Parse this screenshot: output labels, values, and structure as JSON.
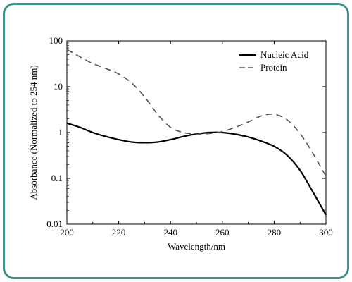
{
  "chart_data": {
    "type": "line",
    "xlabel": "Wavelength/nm",
    "ylabel": "Absorbance (Normalized to 254 nm)",
    "x_ticks": [
      "200",
      "220",
      "240",
      "260",
      "280",
      "300"
    ],
    "y_ticks": [
      "0.01",
      "0.1",
      "1",
      "10",
      "100"
    ],
    "xlim": [
      200,
      300
    ],
    "ylim": [
      0.01,
      100
    ],
    "y_scale": "log",
    "grid": false,
    "legend_position": "top-right",
    "series": [
      {
        "name": "Nucleic Acid",
        "style": "solid",
        "color": "#000000",
        "points": [
          [
            200,
            1.6
          ],
          [
            205,
            1.3
          ],
          [
            210,
            1.0
          ],
          [
            215,
            0.82
          ],
          [
            220,
            0.7
          ],
          [
            225,
            0.62
          ],
          [
            230,
            0.6
          ],
          [
            235,
            0.62
          ],
          [
            240,
            0.7
          ],
          [
            245,
            0.82
          ],
          [
            250,
            0.93
          ],
          [
            255,
            1.0
          ],
          [
            260,
            1.0
          ],
          [
            265,
            0.92
          ],
          [
            270,
            0.8
          ],
          [
            275,
            0.65
          ],
          [
            280,
            0.5
          ],
          [
            285,
            0.32
          ],
          [
            290,
            0.15
          ],
          [
            295,
            0.05
          ],
          [
            300,
            0.016
          ]
        ]
      },
      {
        "name": "Protein",
        "style": "dashed",
        "color": "#555555",
        "points": [
          [
            200,
            65
          ],
          [
            205,
            45
          ],
          [
            210,
            32
          ],
          [
            215,
            25
          ],
          [
            220,
            19
          ],
          [
            225,
            12
          ],
          [
            230,
            6
          ],
          [
            235,
            2.5
          ],
          [
            240,
            1.3
          ],
          [
            245,
            1.0
          ],
          [
            250,
            0.93
          ],
          [
            255,
            0.95
          ],
          [
            260,
            1.05
          ],
          [
            265,
            1.3
          ],
          [
            270,
            1.7
          ],
          [
            275,
            2.3
          ],
          [
            280,
            2.5
          ],
          [
            285,
            1.9
          ],
          [
            290,
            0.95
          ],
          [
            295,
            0.35
          ],
          [
            300,
            0.11
          ]
        ]
      }
    ]
  }
}
